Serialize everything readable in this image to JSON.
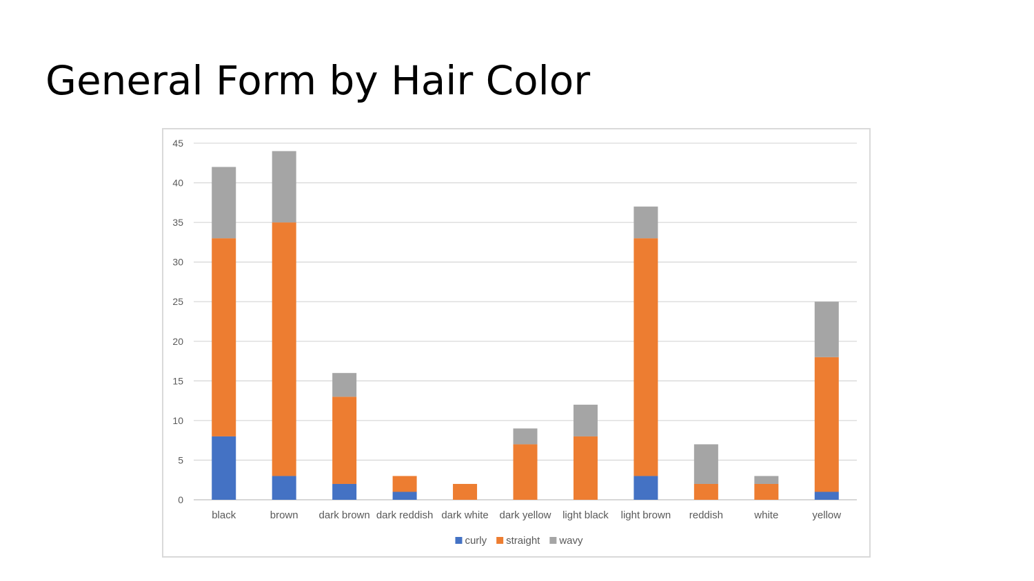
{
  "slide": {
    "title": "General Form by Hair Color"
  },
  "chart_data": {
    "type": "bar",
    "stacked": true,
    "title": "",
    "xlabel": "",
    "ylabel": "",
    "ylim": [
      0,
      45
    ],
    "yticks": [
      0,
      5,
      10,
      15,
      20,
      25,
      30,
      35,
      40,
      45
    ],
    "grid": true,
    "legend_position": "bottom",
    "categories": [
      "black",
      "brown",
      "dark brown",
      "dark reddish",
      "dark white",
      "dark yellow",
      "light black",
      "light brown",
      "reddish",
      "white",
      "yellow"
    ],
    "series": [
      {
        "name": "curly",
        "color": "#4472C4",
        "values": [
          8,
          3,
          2,
          1,
          0,
          0,
          0,
          3,
          0,
          0,
          1
        ]
      },
      {
        "name": "straight",
        "color": "#ED7D31",
        "values": [
          25,
          32,
          11,
          2,
          2,
          7,
          8,
          30,
          2,
          2,
          17
        ]
      },
      {
        "name": "wavy",
        "color": "#A5A5A5",
        "values": [
          9,
          9,
          3,
          0,
          0,
          2,
          4,
          4,
          5,
          1,
          7
        ]
      }
    ]
  }
}
